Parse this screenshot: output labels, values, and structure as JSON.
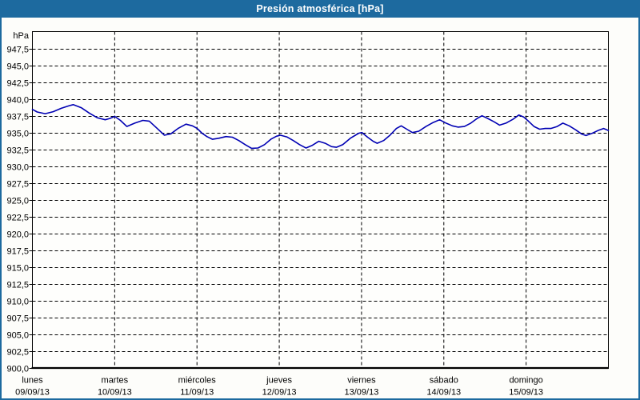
{
  "title_bar": {
    "title": "Presión atmosférica [hPa]",
    "bg_color": "#1d6a9f",
    "text_color": "#ffffff"
  },
  "frame": {
    "border_color": "#1d6a9f",
    "background_color": "#fdfdfa"
  },
  "chart_data": {
    "type": "line",
    "title": "Presión atmosférica [hPa]",
    "grid": "dashed-black",
    "legend": "none",
    "y_axis": {
      "unit": "hPa",
      "min": 900,
      "max": 947.5,
      "tick_step": 2.5,
      "ticks": [
        947.5,
        945.0,
        942.5,
        940.0,
        937.5,
        935.0,
        932.5,
        930.0,
        927.5,
        925.0,
        922.5,
        920.0,
        917.5,
        915.0,
        912.5,
        910.0,
        907.5,
        905.0,
        902.5,
        900.0
      ],
      "tick_labels": [
        "947,5",
        "945,0",
        "942,5",
        "940,0",
        "937,5",
        "935,0",
        "932,5",
        "930,0",
        "927,5",
        "925,0",
        "922,5",
        "920,0",
        "917,5",
        "915,0",
        "912,5",
        "910,0",
        "907,5",
        "905,0",
        "902,5",
        "900,0"
      ]
    },
    "x_axis": {
      "num_days": 7,
      "days": [
        {
          "name": "lunes",
          "date": "09/09/13"
        },
        {
          "name": "martes",
          "date": "10/09/13"
        },
        {
          "name": "miércoles",
          "date": "11/09/13"
        },
        {
          "name": "jueves",
          "date": "12/09/13"
        },
        {
          "name": "viernes",
          "date": "13/09/13"
        },
        {
          "name": "sábado",
          "date": "14/09/13"
        },
        {
          "name": "domingo",
          "date": "15/09/13"
        }
      ]
    },
    "series": [
      {
        "name": "Presión atmosférica",
        "color": "#0000b3",
        "points": [
          [
            0.0,
            938.55
          ],
          [
            0.058,
            938.15
          ],
          [
            0.156,
            937.9
          ],
          [
            0.253,
            938.2
          ],
          [
            0.35,
            938.7
          ],
          [
            0.447,
            939.1
          ],
          [
            0.496,
            939.25
          ],
          [
            0.593,
            938.8
          ],
          [
            0.69,
            938.0
          ],
          [
            0.788,
            937.3
          ],
          [
            0.885,
            937.0
          ],
          [
            0.943,
            937.2
          ],
          [
            1.0,
            937.5
          ],
          [
            1.069,
            936.9
          ],
          [
            1.147,
            936.0
          ],
          [
            1.244,
            936.5
          ],
          [
            1.342,
            936.9
          ],
          [
            1.42,
            936.8
          ],
          [
            1.517,
            935.7
          ],
          [
            1.604,
            934.7
          ],
          [
            1.682,
            934.9
          ],
          [
            1.769,
            935.7
          ],
          [
            1.867,
            936.35
          ],
          [
            1.944,
            936.1
          ],
          [
            2.003,
            935.7
          ],
          [
            2.061,
            935.0
          ],
          [
            2.12,
            934.5
          ],
          [
            2.188,
            934.1
          ],
          [
            2.265,
            934.25
          ],
          [
            2.353,
            934.5
          ],
          [
            2.431,
            934.4
          ],
          [
            2.508,
            933.9
          ],
          [
            2.586,
            933.3
          ],
          [
            2.664,
            932.75
          ],
          [
            2.742,
            932.8
          ],
          [
            2.82,
            933.3
          ],
          [
            2.897,
            934.1
          ],
          [
            2.965,
            934.55
          ],
          [
            3.014,
            934.7
          ],
          [
            3.092,
            934.45
          ],
          [
            3.17,
            933.9
          ],
          [
            3.247,
            933.3
          ],
          [
            3.325,
            932.8
          ],
          [
            3.403,
            933.2
          ],
          [
            3.481,
            933.8
          ],
          [
            3.558,
            933.5
          ],
          [
            3.636,
            933.0
          ],
          [
            3.694,
            932.9
          ],
          [
            3.772,
            933.3
          ],
          [
            3.869,
            934.3
          ],
          [
            3.967,
            935.0
          ],
          [
            4.006,
            935.1
          ],
          [
            4.074,
            934.4
          ],
          [
            4.142,
            933.8
          ],
          [
            4.19,
            933.5
          ],
          [
            4.268,
            933.9
          ],
          [
            4.346,
            934.7
          ],
          [
            4.424,
            935.7
          ],
          [
            4.482,
            936.1
          ],
          [
            4.55,
            935.6
          ],
          [
            4.618,
            935.1
          ],
          [
            4.696,
            935.3
          ],
          [
            4.783,
            936.0
          ],
          [
            4.871,
            936.6
          ],
          [
            4.949,
            937.0
          ],
          [
            5.026,
            936.5
          ],
          [
            5.104,
            936.1
          ],
          [
            5.172,
            935.9
          ],
          [
            5.25,
            936.0
          ],
          [
            5.328,
            936.5
          ],
          [
            5.406,
            937.2
          ],
          [
            5.464,
            937.6
          ],
          [
            5.532,
            937.2
          ],
          [
            5.61,
            936.7
          ],
          [
            5.678,
            936.2
          ],
          [
            5.756,
            936.5
          ],
          [
            5.843,
            937.1
          ],
          [
            5.911,
            937.7
          ],
          [
            5.97,
            937.4
          ],
          [
            6.028,
            936.8
          ],
          [
            6.096,
            936.0
          ],
          [
            6.164,
            935.6
          ],
          [
            6.232,
            935.7
          ],
          [
            6.3,
            935.7
          ],
          [
            6.378,
            936.0
          ],
          [
            6.446,
            936.5
          ],
          [
            6.524,
            936.1
          ],
          [
            6.602,
            935.5
          ],
          [
            6.679,
            934.85
          ],
          [
            6.728,
            934.65
          ],
          [
            6.806,
            935.0
          ],
          [
            6.883,
            935.45
          ],
          [
            6.942,
            935.7
          ],
          [
            7.0,
            935.4
          ]
        ]
      }
    ]
  }
}
